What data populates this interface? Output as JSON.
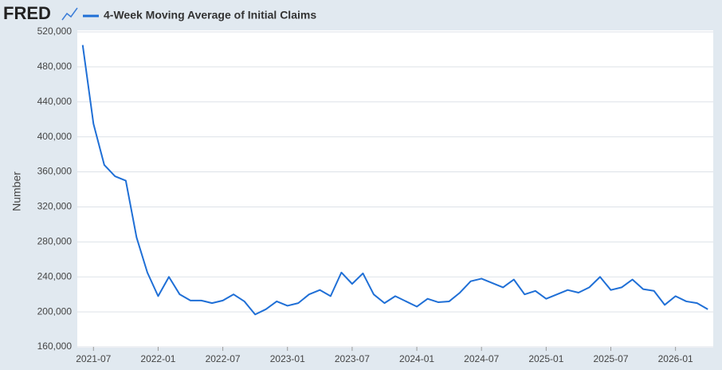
{
  "logo": "FRED",
  "chart_data": {
    "type": "line",
    "ylabel": "Number",
    "x": [
      "2021-06",
      "2021-07",
      "2021-08",
      "2021-09",
      "2021-10",
      "2021-11",
      "2021-12",
      "2022-01",
      "2022-02",
      "2022-03",
      "2022-04",
      "2022-05",
      "2022-06",
      "2022-07",
      "2022-08",
      "2022-09",
      "2022-10",
      "2022-11",
      "2022-12",
      "2023-01",
      "2023-02",
      "2023-03",
      "2023-04",
      "2023-05",
      "2023-06",
      "2023-07",
      "2023-08",
      "2023-09",
      "2023-10",
      "2023-11",
      "2023-12",
      "2024-01",
      "2024-02",
      "2024-03",
      "2024-04",
      "2024-05",
      "2024-06",
      "2024-07",
      "2024-08",
      "2024-09",
      "2024-10",
      "2024-11",
      "2024-12",
      "2025-01",
      "2025-02",
      "2025-03",
      "2025-04",
      "2025-05",
      "2025-06",
      "2025-07",
      "2025-08",
      "2025-09",
      "2025-10",
      "2025-11",
      "2025-12",
      "2026-01",
      "2026-02",
      "2026-03",
      "2026-04"
    ],
    "series": [
      {
        "name": "4-Week Moving Average of Initial Claims",
        "color": "#1f6fd6",
        "values": [
          505000,
          415000,
          368000,
          355000,
          350000,
          285000,
          245000,
          218000,
          240000,
          220000,
          213000,
          213000,
          210000,
          213000,
          220000,
          212000,
          197000,
          203000,
          212000,
          207000,
          210000,
          220000,
          225000,
          218000,
          245000,
          232000,
          244000,
          220000,
          210000,
          218000,
          212000,
          206000,
          215000,
          211000,
          212000,
          222000,
          235000,
          238000,
          233000,
          228000,
          237000,
          220000,
          224000,
          215000,
          220000,
          225000,
          222000,
          228000,
          240000,
          225000,
          228000,
          237000,
          226000,
          224000,
          208000,
          218000,
          212000,
          210000,
          203000
        ]
      }
    ],
    "ylim": [
      160000,
      520000
    ],
    "yticks": [
      {
        "value": 160000,
        "label": "160,000"
      },
      {
        "value": 200000,
        "label": "200,000"
      },
      {
        "value": 240000,
        "label": "240,000"
      },
      {
        "value": 280000,
        "label": "280,000"
      },
      {
        "value": 320000,
        "label": "320,000"
      },
      {
        "value": 360000,
        "label": "360,000"
      },
      {
        "value": 400000,
        "label": "400,000"
      },
      {
        "value": 440000,
        "label": "440,000"
      },
      {
        "value": 480000,
        "label": "480,000"
      },
      {
        "value": 520000,
        "label": "520,000"
      }
    ],
    "xticks": [
      "2021-07",
      "2022-01",
      "2022-07",
      "2023-01",
      "2023-07",
      "2024-01",
      "2024-07",
      "2025-01",
      "2025-07",
      "2026-01"
    ],
    "grid": true
  }
}
